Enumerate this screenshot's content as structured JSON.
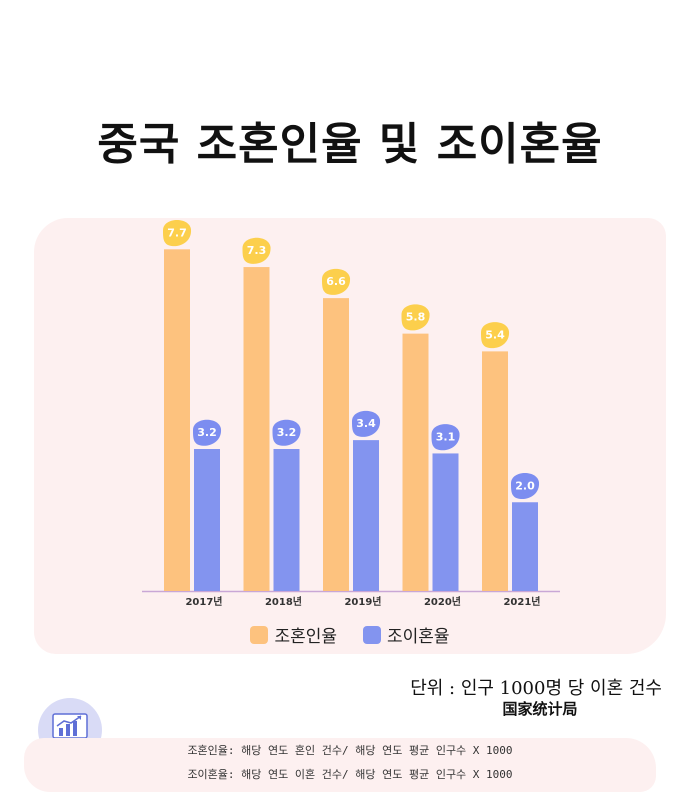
{
  "title": "중국 조혼인율 및 조이혼율",
  "chart_data": {
    "type": "bar",
    "categories": [
      "2017년",
      "2018년",
      "2019년",
      "2020년",
      "2021년"
    ],
    "series": [
      {
        "name": "조혼인율",
        "values": [
          7.7,
          7.3,
          6.6,
          5.8,
          5.4
        ],
        "labels": [
          "7.7",
          "7.3",
          "6.6",
          "5.8",
          "5.4"
        ],
        "color": "#fdc27e",
        "label_color": "#fccf4c"
      },
      {
        "name": "조이혼율",
        "values": [
          3.2,
          3.2,
          3.4,
          3.1,
          2.0
        ],
        "labels": [
          "3.2",
          "3.2",
          "3.4",
          "3.1",
          "2.0"
        ],
        "color": "#8394ef",
        "label_color": "#7c8df0"
      }
    ],
    "ylim": [
      0,
      8
    ],
    "legend": "bottom"
  },
  "unit_note": "단위 : 인구 1000명 당 이혼 건수",
  "source": "国家统计局",
  "formulas": {
    "marriage": "조혼인율: 해당 연도 혼인 건수/ 해당 연도 평균 인구수 X 1000",
    "divorce": "조이혼율: 해당 연도 이혼 건수/ 해당 연도 평균 인구수 X 1000"
  },
  "icon": "chart-analytics-icon"
}
